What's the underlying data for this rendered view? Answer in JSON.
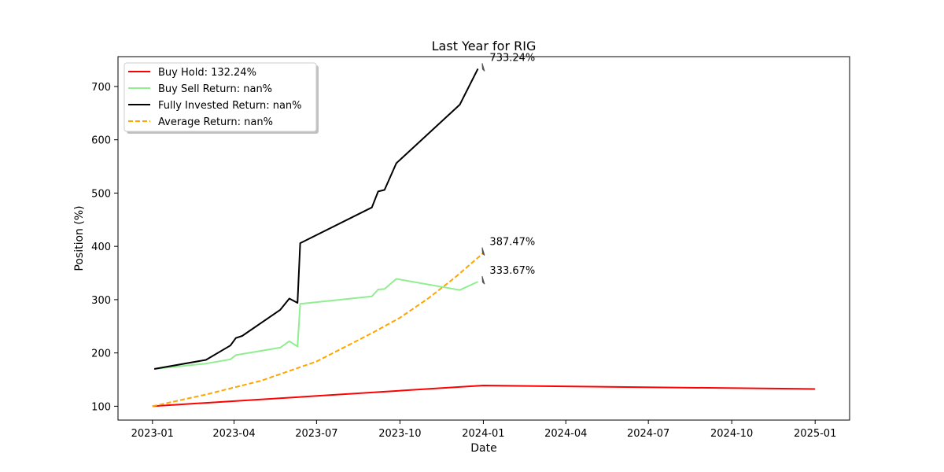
{
  "chart_data": {
    "type": "line",
    "title": "Last Year for RIG",
    "xlabel": "Date",
    "ylabel": "Position (%)",
    "xlim": [
      "2022-11-24",
      "2025-02-08"
    ],
    "ylim": [
      74,
      756
    ],
    "x_ticks": [
      "2023-01",
      "2023-04",
      "2023-07",
      "2023-10",
      "2024-01",
      "2024-04",
      "2024-07",
      "2024-10",
      "2025-01"
    ],
    "y_ticks": [
      100,
      200,
      300,
      400,
      500,
      600,
      700
    ],
    "grid": false,
    "legend_position": "top-left",
    "series": [
      {
        "name": "Buy Hold: 132.24%",
        "color": "#ff0000",
        "style": "solid",
        "x": [
          "2023-01-01",
          "2024-01-01",
          "2025-01-01"
        ],
        "y": [
          100,
          139,
          132.24
        ]
      },
      {
        "name": "Buy Sell Return: nan%",
        "color": "#90ee90",
        "style": "solid",
        "x": [
          "2023-01-03",
          "2023-03-01",
          "2023-03-28",
          "2023-04-03",
          "2023-05-22",
          "2023-06-01",
          "2023-06-10",
          "2023-06-13",
          "2023-08-31",
          "2023-09-07",
          "2023-09-14",
          "2023-09-27",
          "2023-12-06",
          "2023-12-26"
        ],
        "y": [
          170,
          180,
          188,
          196,
          210,
          222,
          212,
          292,
          306,
          319,
          320,
          339,
          318,
          333.67
        ]
      },
      {
        "name": "Fully Invested Return: nan%",
        "color": "#000000",
        "style": "solid",
        "x": [
          "2023-01-03",
          "2023-03-01",
          "2023-03-28",
          "2023-04-03",
          "2023-04-10",
          "2023-05-22",
          "2023-06-01",
          "2023-06-10",
          "2023-06-13",
          "2023-08-31",
          "2023-09-07",
          "2023-09-14",
          "2023-09-27",
          "2023-12-06",
          "2023-12-26"
        ],
        "y": [
          170,
          187,
          214,
          228,
          232,
          281,
          302,
          294,
          406,
          473,
          503,
          506,
          556,
          666,
          733.24
        ]
      },
      {
        "name": "Average Return: nan%",
        "color": "#ffa500",
        "style": "dashed",
        "x": [
          "2023-01-01",
          "2023-03-01",
          "2023-05-01",
          "2023-07-01",
          "2023-09-01",
          "2023-10-01",
          "2023-11-01",
          "2023-12-01",
          "2024-01-01"
        ],
        "y": [
          100,
          122,
          148,
          184,
          238,
          266,
          302,
          342,
          387.47
        ]
      }
    ],
    "annotations": [
      {
        "text": "733.24%",
        "x": "2024-01-01",
        "y": 733.24
      },
      {
        "text": "387.47%",
        "x": "2024-01-01",
        "y": 387.47
      },
      {
        "text": "333.67%",
        "x": "2024-01-01",
        "y": 333.67
      }
    ]
  }
}
